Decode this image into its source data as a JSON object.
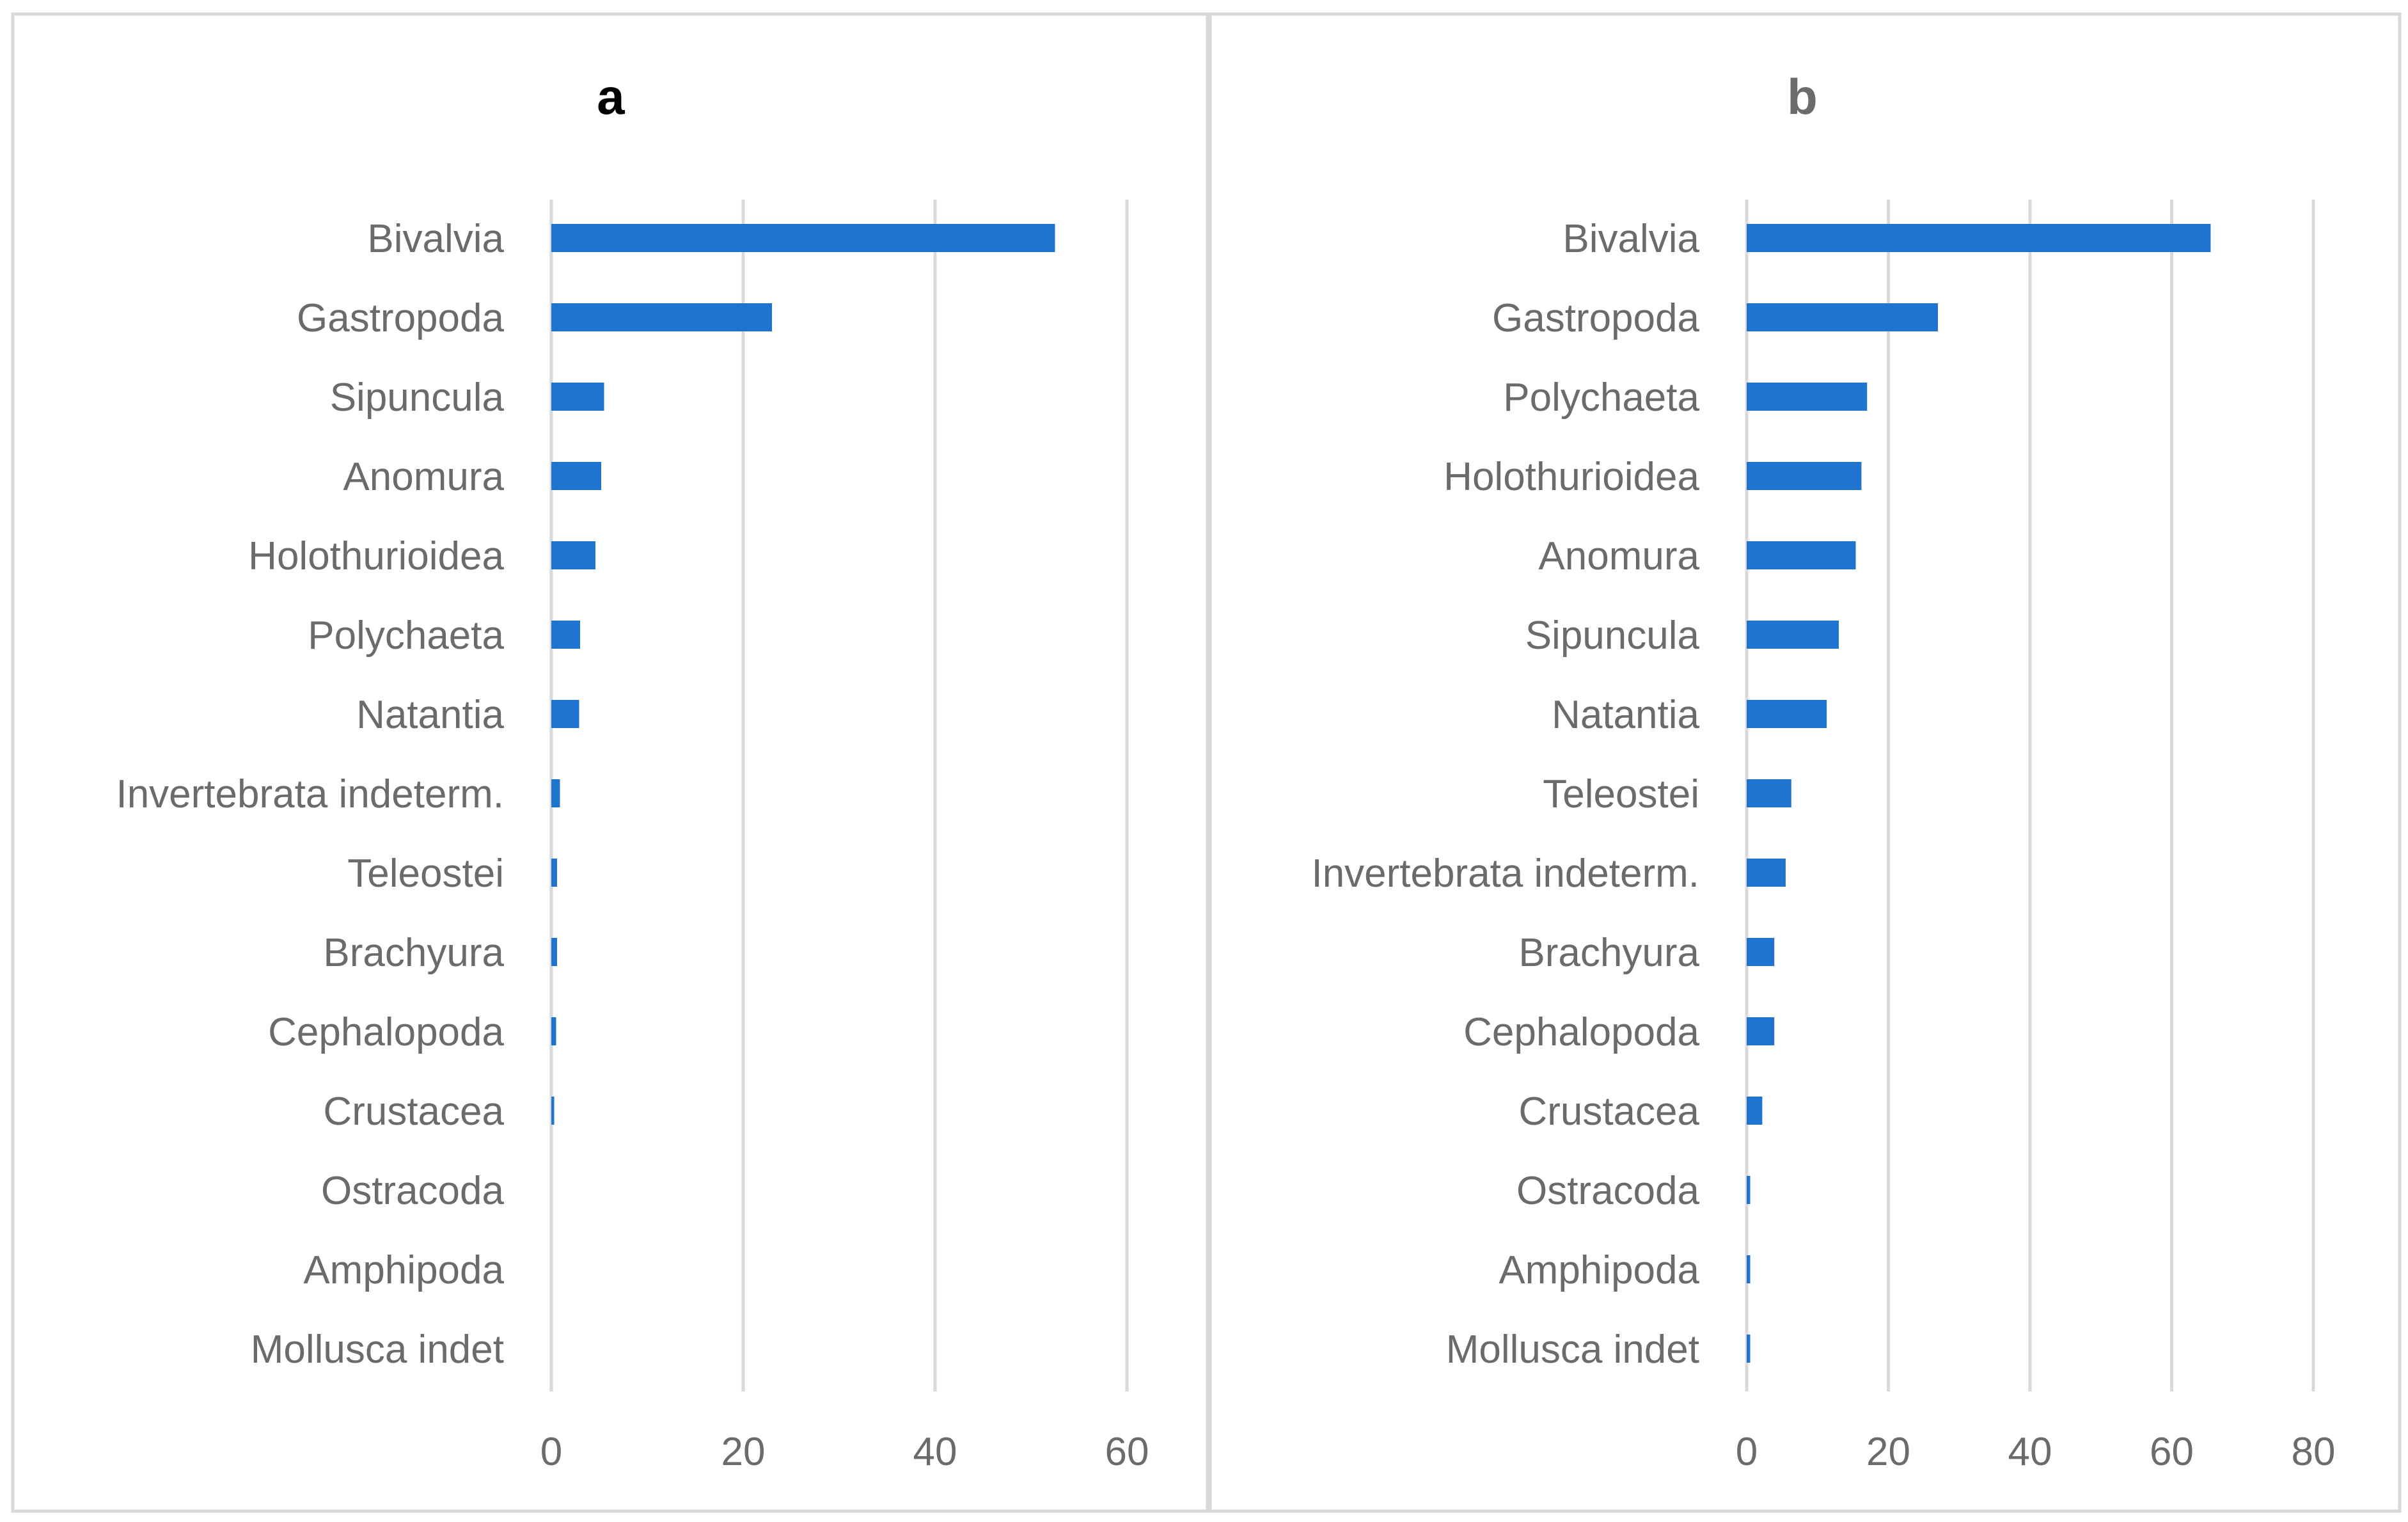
{
  "colors": {
    "bar": "#1f74d0",
    "grid": "#d9d9d9",
    "text": "#6b6b6b",
    "title_a": "#000000",
    "title_b": "#6b6b6b",
    "border": "#d9d9d9"
  },
  "chart_data": [
    {
      "type": "bar",
      "orientation": "horizontal",
      "title": "a",
      "categories": [
        "Bivalvia",
        "Gastropoda",
        "Sipuncula",
        "Anomura",
        "Holothurioidea",
        "Polychaeta",
        "Natantia",
        "Invertebrata indeterm.",
        "Teleostei",
        "Brachyura",
        "Cephalopoda",
        "Crustacea",
        "Ostracoda",
        "Amphipoda",
        "Mollusca indet"
      ],
      "values": [
        52.5,
        23,
        5.5,
        5.2,
        4.6,
        3,
        2.9,
        0.9,
        0.6,
        0.6,
        0.5,
        0.3,
        0,
        0,
        0
      ],
      "xlim": [
        0,
        60
      ],
      "xticks": [
        0,
        20,
        40,
        60
      ],
      "grid": true,
      "xlabel": "",
      "ylabel": ""
    },
    {
      "type": "bar",
      "orientation": "horizontal",
      "title": "b",
      "categories": [
        "Bivalvia",
        "Gastropoda",
        "Polychaeta",
        "Holothurioidea",
        "Anomura",
        "Sipuncula",
        "Natantia",
        "Teleostei",
        "Invertebrata indeterm.",
        "Brachyura",
        "Cephalopoda",
        "Crustacea",
        "Ostracoda",
        "Amphipoda",
        "Mollusca indet"
      ],
      "values": [
        65.5,
        27,
        17,
        16.2,
        15.4,
        13,
        11.3,
        6.3,
        5.5,
        3.9,
        3.9,
        2.2,
        0.5,
        0.5,
        0.5
      ],
      "xlim": [
        0,
        80
      ],
      "xticks": [
        0,
        20,
        40,
        60,
        80
      ],
      "grid": true,
      "xlabel": "",
      "ylabel": ""
    }
  ]
}
